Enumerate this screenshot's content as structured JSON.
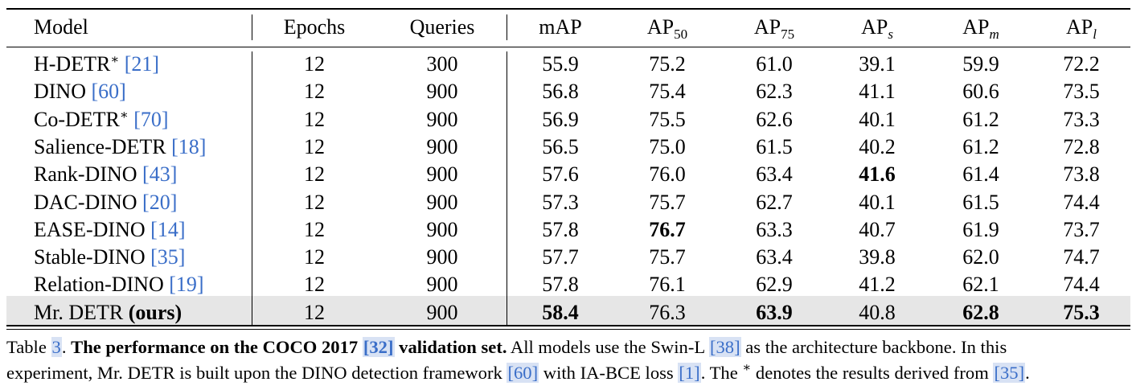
{
  "table": {
    "headers": {
      "model": "Model",
      "epochs": "Epochs",
      "queries": "Queries",
      "map": "mAP",
      "ap50": {
        "base": "AP",
        "sub": "50"
      },
      "ap75": {
        "base": "AP",
        "sub": "75"
      },
      "aps": {
        "base": "AP",
        "sub": "s"
      },
      "apm": {
        "base": "AP",
        "sub": "m"
      },
      "apl": {
        "base": "AP",
        "sub": "l"
      }
    },
    "rows": [
      {
        "name": "H-DETR",
        "star": "∗",
        "ref": "[21]",
        "epochs": "12",
        "queries": "300",
        "map": "55.9",
        "ap50": "75.2",
        "ap75": "61.0",
        "aps": "39.1",
        "apm": "59.9",
        "apl": "72.2"
      },
      {
        "name": "DINO",
        "star": "",
        "ref": "[60]",
        "epochs": "12",
        "queries": "900",
        "map": "56.8",
        "ap50": "75.4",
        "ap75": "62.3",
        "aps": "41.1",
        "apm": "60.6",
        "apl": "73.5"
      },
      {
        "name": "Co-DETR",
        "star": "∗",
        "ref": "[70]",
        "epochs": "12",
        "queries": "900",
        "map": "56.9",
        "ap50": "75.5",
        "ap75": "62.6",
        "aps": "40.1",
        "apm": "61.2",
        "apl": "73.3"
      },
      {
        "name": "Salience-DETR",
        "star": "",
        "ref": "[18]",
        "epochs": "12",
        "queries": "900",
        "map": "56.5",
        "ap50": "75.0",
        "ap75": "61.5",
        "aps": "40.2",
        "apm": "61.2",
        "apl": "72.8"
      },
      {
        "name": "Rank-DINO",
        "star": "",
        "ref": "[43]",
        "epochs": "12",
        "queries": "900",
        "map": "57.6",
        "ap50": "76.0",
        "ap75": "63.4",
        "aps": "41.6",
        "apm": "61.4",
        "apl": "73.8"
      },
      {
        "name": "DAC-DINO",
        "star": "",
        "ref": "[20]",
        "epochs": "12",
        "queries": "900",
        "map": "57.3",
        "ap50": "75.7",
        "ap75": "62.7",
        "aps": "40.1",
        "apm": "61.5",
        "apl": "74.4"
      },
      {
        "name": "EASE-DINO",
        "star": "",
        "ref": "[14]",
        "epochs": "12",
        "queries": "900",
        "map": "57.8",
        "ap50": "76.7",
        "ap75": "63.3",
        "aps": "40.7",
        "apm": "61.9",
        "apl": "73.7"
      },
      {
        "name": "Stable-DINO",
        "star": "",
        "ref": "[35]",
        "epochs": "12",
        "queries": "900",
        "map": "57.7",
        "ap50": "75.7",
        "ap75": "63.4",
        "aps": "39.8",
        "apm": "62.0",
        "apl": "74.7"
      },
      {
        "name": "Relation-DINO",
        "star": "",
        "ref": "[19]",
        "epochs": "12",
        "queries": "900",
        "map": "57.8",
        "ap50": "76.1",
        "ap75": "62.9",
        "aps": "41.2",
        "apm": "62.1",
        "apl": "74.4"
      },
      {
        "name": "Mr. DETR",
        "star": "",
        "ref": "",
        "ours": "(ours)",
        "epochs": "12",
        "queries": "900",
        "map": "58.4",
        "ap50": "76.3",
        "ap75": "63.9",
        "aps": "40.8",
        "apm": "62.8",
        "apl": "75.3"
      }
    ],
    "bold_cells": [
      {
        "row": 4,
        "col": "aps"
      },
      {
        "row": 6,
        "col": "ap50"
      },
      {
        "row": 9,
        "col": "map"
      },
      {
        "row": 9,
        "col": "ap75"
      },
      {
        "row": 9,
        "col": "apm"
      },
      {
        "row": 9,
        "col": "apl"
      }
    ],
    "highlight_row_color": "#e6e6e6",
    "ref_color": "#3a6ec8"
  },
  "caption": {
    "label": "Table",
    "number": "3",
    "title_a": "The performance on the COCO 2017",
    "title_ref": "[32]",
    "title_b": "validation set.",
    "l1_a": "All models use the Swin-L",
    "l1_ref": "[38]",
    "l1_b": "as the architecture backbone. In this",
    "l2_a": "experiment, Mr. DETR is built upon the DINO detection framework",
    "l2_ref1": "[60]",
    "l2_b": "with IA-BCE loss",
    "l2_ref2": "[1]",
    "l2_c": ". The",
    "l2_star": "∗",
    "l2_d": "denotes the results derived from",
    "l2_ref3": "[35]",
    "l2_e": "."
  }
}
